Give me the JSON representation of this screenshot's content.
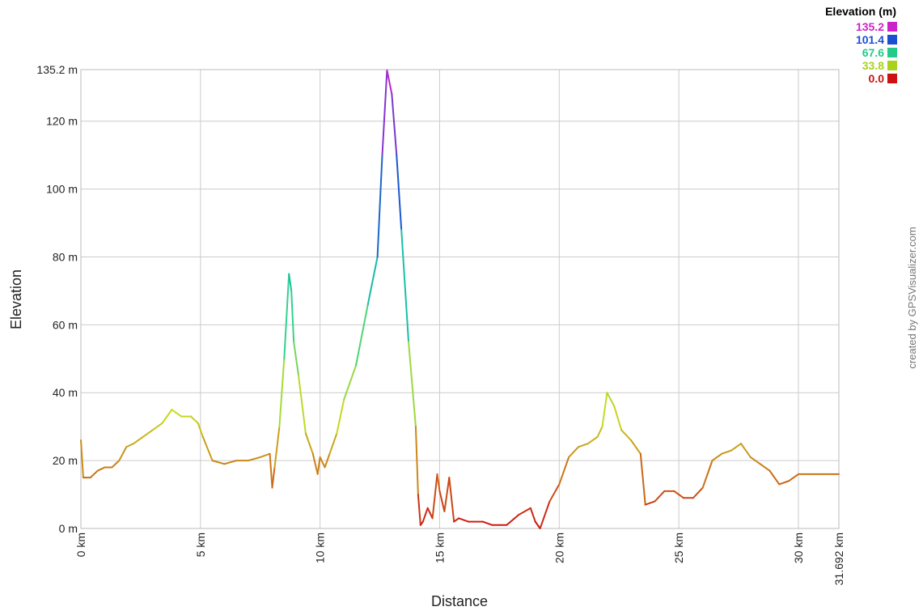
{
  "chart_data": {
    "type": "line",
    "xlabel": "Distance",
    "ylabel": "Elevation",
    "xlim": [
      0,
      31.692
    ],
    "ylim": [
      0,
      135.2
    ],
    "grid": true,
    "x_ticks": [
      {
        "value": 0,
        "label": "0 km"
      },
      {
        "value": 5,
        "label": "5 km"
      },
      {
        "value": 10,
        "label": "10 km"
      },
      {
        "value": 15,
        "label": "15 km"
      },
      {
        "value": 20,
        "label": "20 km"
      },
      {
        "value": 25,
        "label": "25 km"
      },
      {
        "value": 30,
        "label": "30 km"
      },
      {
        "value": 31.692,
        "label": "31.692 km"
      }
    ],
    "y_ticks": [
      {
        "value": 0,
        "label": "0 m"
      },
      {
        "value": 20,
        "label": "20 m"
      },
      {
        "value": 40,
        "label": "40 m"
      },
      {
        "value": 60,
        "label": "60 m"
      },
      {
        "value": 80,
        "label": "80 m"
      },
      {
        "value": 100,
        "label": "100 m"
      },
      {
        "value": 120,
        "label": "120 m"
      },
      {
        "value": 135.2,
        "label": "135.2 m"
      }
    ],
    "legend": {
      "title": "Elevation (m)",
      "placement": "top-right",
      "entries": [
        {
          "label": "135.2",
          "color": "#cc22cc"
        },
        {
          "label": "101.4",
          "color": "#1a4fd1"
        },
        {
          "label": "67.6",
          "color": "#22cc88"
        },
        {
          "label": "33.8",
          "color": "#a8d21a"
        },
        {
          "label": "0.0",
          "color": "#cc1111"
        }
      ]
    },
    "color_scale": [
      {
        "value": 0,
        "color": "#cc1111"
      },
      {
        "value": 33.8,
        "color": "#c8dc20"
      },
      {
        "value": 67.6,
        "color": "#18d0a0"
      },
      {
        "value": 101.4,
        "color": "#1a4fd1"
      },
      {
        "value": 135.2,
        "color": "#cc22cc"
      }
    ],
    "credit": "created by GPSVisualizer.com",
    "series": [
      {
        "x": [
          0,
          0.1,
          0.4,
          0.7,
          1.0,
          1.3,
          1.6,
          1.9,
          2.2,
          2.6,
          3.0,
          3.4,
          3.8,
          4.2,
          4.6,
          4.9,
          5.1,
          5.5,
          6.0,
          6.5,
          7.0,
          7.5,
          7.9,
          8.0,
          8.1,
          8.3,
          8.5,
          8.7,
          8.8,
          8.9,
          9.1,
          9.4,
          9.7,
          9.9,
          10.0,
          10.2,
          10.4,
          10.7,
          11.0,
          11.5,
          12.0,
          12.4,
          12.6,
          12.8,
          13.0,
          13.2,
          13.4,
          13.7,
          14.0,
          14.1,
          14.2,
          14.3,
          14.5,
          14.7,
          14.9,
          15.0,
          15.2,
          15.4,
          15.6,
          15.8,
          16.2,
          16.8,
          17.2,
          17.5,
          17.8,
          18.3,
          18.8,
          19.0,
          19.2,
          19.6,
          20.0,
          20.4,
          20.8,
          21.2,
          21.6,
          21.8,
          22.0,
          22.3,
          22.6,
          23.0,
          23.4,
          23.6,
          24.0,
          24.4,
          24.8,
          25.2,
          25.6,
          26.0,
          26.4,
          26.8,
          27.2,
          27.6,
          28.0,
          28.4,
          28.8,
          29.2,
          29.6,
          30.0,
          30.5,
          31.0,
          31.692
        ],
        "values": [
          26,
          15,
          15,
          17,
          18,
          18,
          20,
          24,
          25,
          27,
          29,
          31,
          35,
          33,
          33,
          31,
          27,
          20,
          19,
          20,
          20,
          21,
          22,
          12,
          18,
          30,
          50,
          75,
          70,
          55,
          45,
          28,
          22,
          16,
          21,
          18,
          22,
          28,
          38,
          48,
          66,
          80,
          110,
          135,
          128,
          110,
          88,
          55,
          30,
          10,
          1,
          2,
          6,
          3,
          16,
          11,
          5,
          15,
          2,
          3,
          2,
          2,
          1,
          1,
          1,
          4,
          6,
          2,
          0,
          8,
          13,
          21,
          24,
          25,
          27,
          30,
          40,
          36,
          29,
          26,
          22,
          7,
          8,
          11,
          11,
          9,
          9,
          12,
          20,
          22,
          23,
          25,
          21,
          19,
          17,
          13,
          14,
          16,
          16,
          16,
          16
        ]
      }
    ]
  }
}
